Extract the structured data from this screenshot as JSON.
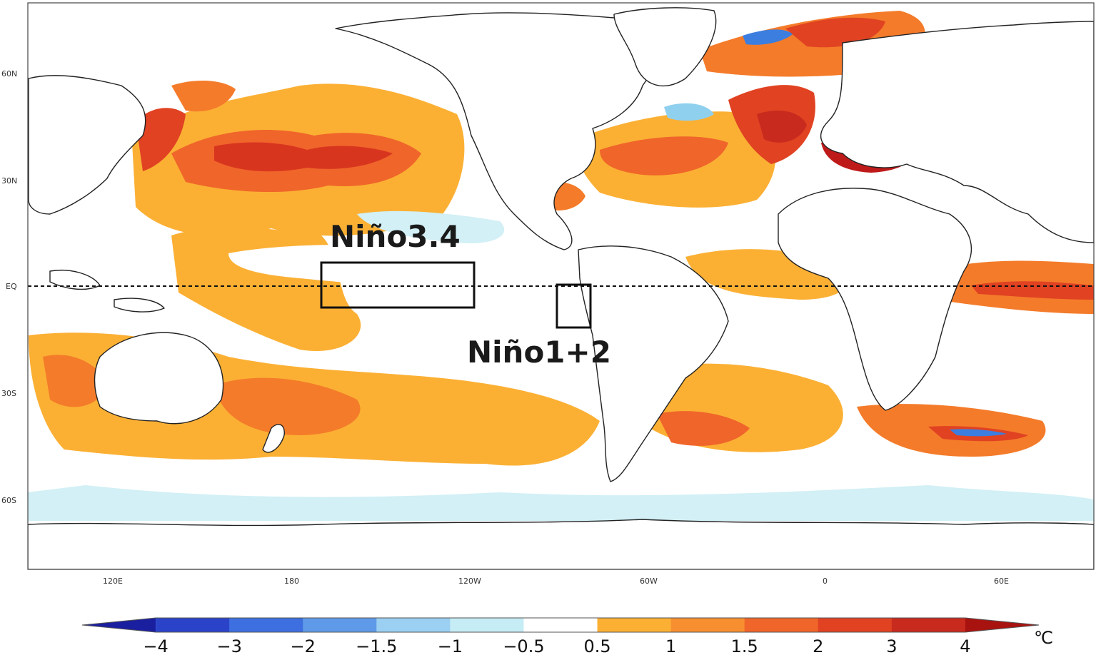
{
  "map": {
    "lat_labels": [
      "60N",
      "30N",
      "EQ",
      "30S",
      "60S"
    ],
    "lon_labels": [
      "120E",
      "180",
      "120W",
      "60W",
      "0",
      "60E"
    ],
    "regions": [
      {
        "name": "Niño3.4"
      },
      {
        "name": "Niño1+2"
      }
    ],
    "colors": {
      "warm_light": "#fbb034",
      "warm_mid": "#f47b2a",
      "warm_strong": "#e04222",
      "warm_deep": "#bf1a1a",
      "cool_light": "#d2f0f5",
      "cool_mid": "#8fd0ef",
      "cool_strong": "#3b7ee0",
      "land": "#ffffff",
      "coast": "#222222"
    }
  },
  "colorbar": {
    "labels": [
      "−4",
      "−3",
      "−2",
      "−1.5",
      "−1",
      "−0.5",
      "0.5",
      "1",
      "1.5",
      "2",
      "3",
      "4"
    ],
    "colors": [
      "#2b43c9",
      "#3d6fe0",
      "#5f9ae8",
      "#9bd0f2",
      "#c6ecf5",
      "#ffffff",
      "#fbb034",
      "#f78f30",
      "#f0652a",
      "#e04222",
      "#c82a1e",
      "#a8130f"
    ],
    "unit": "℃"
  }
}
